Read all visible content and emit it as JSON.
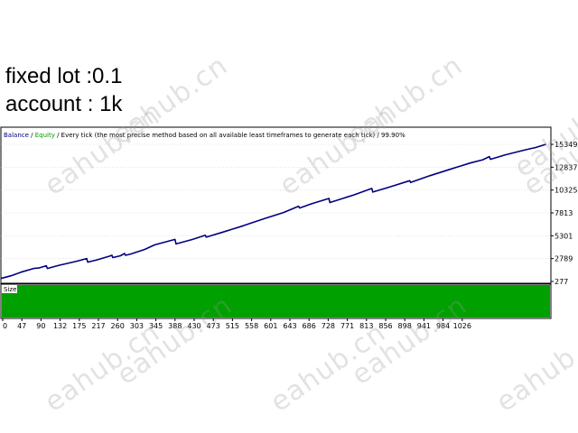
{
  "caption": {
    "lot": "fixed lot :0.1",
    "account": "account : 1k"
  },
  "watermark_text": "eahub.cn",
  "colors": {
    "balance": "#000080",
    "equity": "#009900",
    "size_fill": "#00a000",
    "grid": "#c8c8c8"
  },
  "chart_data": {
    "type": "line",
    "header": {
      "balance_label": "Balance",
      "separator": " / ",
      "equity_label": "Equity",
      "description": " / Every tick (the most precise method based on all available least timeframes to generate each tick) / 99.90%"
    },
    "size_panel_label": "Size",
    "x_ticks": [
      "0",
      "47",
      "90",
      "132",
      "175",
      "217",
      "260",
      "303",
      "345",
      "388",
      "430",
      "473",
      "515",
      "558",
      "601",
      "643",
      "686",
      "728",
      "771",
      "813",
      "856",
      "898",
      "941",
      "984",
      "1026"
    ],
    "y_ticks": [
      "15349",
      "12837",
      "10325",
      "7813",
      "5301",
      "2789",
      "277"
    ],
    "xlim": [
      0,
      1090
    ],
    "ylim": [
      277,
      15349
    ],
    "series": [
      {
        "name": "Balance",
        "points": [
          [
            0,
            600
          ],
          [
            20,
            900
          ],
          [
            40,
            1300
          ],
          [
            65,
            1700
          ],
          [
            75,
            1750
          ],
          [
            90,
            2000
          ],
          [
            92,
            1700
          ],
          [
            115,
            2050
          ],
          [
            150,
            2500
          ],
          [
            170,
            2800
          ],
          [
            172,
            2400
          ],
          [
            190,
            2650
          ],
          [
            215,
            3050
          ],
          [
            220,
            3150
          ],
          [
            222,
            2900
          ],
          [
            237,
            3100
          ],
          [
            245,
            3350
          ],
          [
            247,
            3150
          ],
          [
            258,
            3300
          ],
          [
            285,
            3800
          ],
          [
            305,
            4300
          ],
          [
            345,
            4900
          ],
          [
            347,
            4400
          ],
          [
            380,
            4900
          ],
          [
            405,
            5350
          ],
          [
            407,
            5150
          ],
          [
            440,
            5700
          ],
          [
            480,
            6400
          ],
          [
            520,
            7150
          ],
          [
            560,
            7850
          ],
          [
            590,
            8550
          ],
          [
            592,
            8350
          ],
          [
            615,
            8800
          ],
          [
            650,
            9400
          ],
          [
            652,
            8950
          ],
          [
            700,
            9800
          ],
          [
            730,
            10400
          ],
          [
            735,
            10500
          ],
          [
            737,
            10100
          ],
          [
            770,
            10650
          ],
          [
            810,
            11350
          ],
          [
            812,
            11150
          ],
          [
            850,
            11900
          ],
          [
            890,
            12600
          ],
          [
            930,
            13300
          ],
          [
            955,
            13650
          ],
          [
            968,
            14000
          ],
          [
            970,
            13700
          ],
          [
            1000,
            14200
          ],
          [
            1040,
            14750
          ],
          [
            1060,
            15000
          ],
          [
            1080,
            15349
          ]
        ]
      }
    ]
  }
}
